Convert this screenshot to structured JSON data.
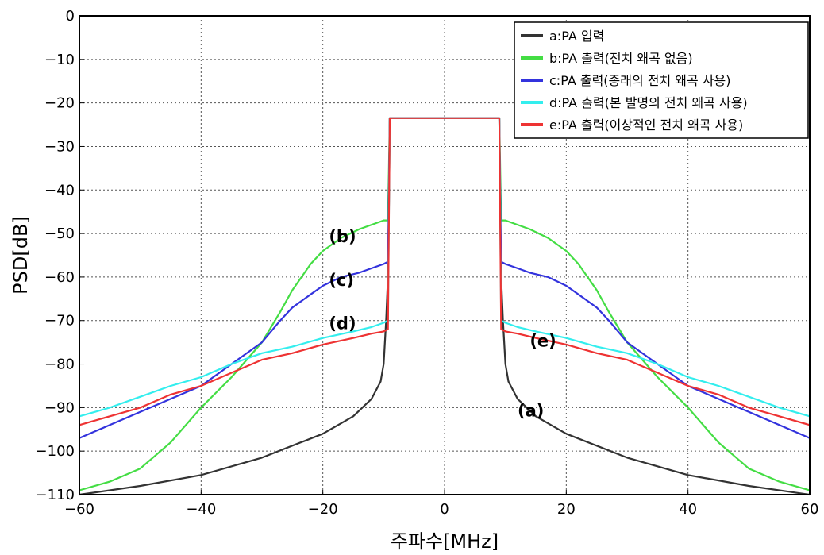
{
  "chart_data": {
    "type": "line",
    "xlabel": "주파수[MHz]",
    "ylabel": "PSD[dB]",
    "xlim": [
      -60,
      60
    ],
    "ylim": [
      -110,
      0
    ],
    "xticks": [
      -60,
      -40,
      -20,
      0,
      20,
      40,
      60
    ],
    "yticks": [
      0,
      -10,
      -20,
      -30,
      -40,
      -50,
      -60,
      -70,
      -80,
      -90,
      -100,
      -110
    ],
    "xtick_labels": [
      "−60",
      "−40",
      "−20",
      "0",
      "20",
      "40",
      "60"
    ],
    "ytick_labels": [
      "0",
      "−10",
      "−20",
      "−30",
      "−40",
      "−50",
      "−60",
      "−70",
      "−80",
      "−90",
      "−100",
      "−110"
    ],
    "grid": true,
    "legend_position": "top-right",
    "series": [
      {
        "name": "a:PA 입력",
        "color": "#333333",
        "points": [
          [
            -60,
            -110
          ],
          [
            -50,
            -108
          ],
          [
            -40,
            -105.5
          ],
          [
            -30,
            -101.5
          ],
          [
            -20,
            -96
          ],
          [
            -15,
            -92
          ],
          [
            -12,
            -88
          ],
          [
            -10.5,
            -84
          ],
          [
            -10,
            -80
          ],
          [
            -9.6,
            -70
          ],
          [
            -9.3,
            -60
          ],
          [
            -9.1,
            -40
          ],
          [
            -9,
            -23.5
          ],
          [
            -5,
            -23.5
          ],
          [
            0,
            -23.5
          ],
          [
            5,
            -23.5
          ],
          [
            9,
            -23.5
          ],
          [
            9.1,
            -40
          ],
          [
            9.3,
            -60
          ],
          [
            9.6,
            -70
          ],
          [
            10,
            -80
          ],
          [
            10.5,
            -84
          ],
          [
            12,
            -88
          ],
          [
            15,
            -92
          ],
          [
            20,
            -96
          ],
          [
            30,
            -101.5
          ],
          [
            40,
            -105.5
          ],
          [
            50,
            -108
          ],
          [
            60,
            -110
          ]
        ]
      },
      {
        "name": "b:PA 출력(전치 왜곡 없음)",
        "color": "#44dd44",
        "points": [
          [
            -60,
            -109
          ],
          [
            -55,
            -107
          ],
          [
            -50,
            -104
          ],
          [
            -45,
            -98
          ],
          [
            -40,
            -90
          ],
          [
            -35,
            -83
          ],
          [
            -30,
            -75
          ],
          [
            -27,
            -68
          ],
          [
            -25,
            -63
          ],
          [
            -22,
            -57
          ],
          [
            -20,
            -54
          ],
          [
            -17,
            -51
          ],
          [
            -14,
            -49
          ],
          [
            -12,
            -48
          ],
          [
            -10,
            -47
          ],
          [
            -9.3,
            -47
          ],
          [
            -9,
            -23.5
          ],
          [
            9,
            -23.5
          ],
          [
            9.3,
            -47
          ],
          [
            10,
            -47
          ],
          [
            12,
            -48
          ],
          [
            14,
            -49
          ],
          [
            17,
            -51
          ],
          [
            20,
            -54
          ],
          [
            22,
            -57
          ],
          [
            25,
            -63
          ],
          [
            27,
            -68
          ],
          [
            30,
            -75
          ],
          [
            35,
            -83
          ],
          [
            40,
            -90
          ],
          [
            45,
            -98
          ],
          [
            50,
            -104
          ],
          [
            55,
            -107
          ],
          [
            60,
            -109
          ]
        ]
      },
      {
        "name": "c:PA 출력(종래의 전치 왜곡 사용)",
        "color": "#3333dd",
        "points": [
          [
            -60,
            -97
          ],
          [
            -55,
            -94
          ],
          [
            -50,
            -91
          ],
          [
            -45,
            -88
          ],
          [
            -40,
            -85
          ],
          [
            -35,
            -80
          ],
          [
            -30,
            -75
          ],
          [
            -27,
            -70
          ],
          [
            -25,
            -67
          ],
          [
            -22,
            -64
          ],
          [
            -20,
            -62
          ],
          [
            -17,
            -60
          ],
          [
            -14,
            -59
          ],
          [
            -12,
            -58
          ],
          [
            -10,
            -57
          ],
          [
            -9.3,
            -56.5
          ],
          [
            -9,
            -23.5
          ],
          [
            9,
            -23.5
          ],
          [
            9.3,
            -56.5
          ],
          [
            10,
            -57
          ],
          [
            12,
            -58
          ],
          [
            14,
            -59
          ],
          [
            17,
            -60
          ],
          [
            20,
            -62
          ],
          [
            22,
            -64
          ],
          [
            25,
            -67
          ],
          [
            27,
            -70
          ],
          [
            30,
            -75
          ],
          [
            35,
            -80
          ],
          [
            40,
            -85
          ],
          [
            45,
            -88
          ],
          [
            50,
            -91
          ],
          [
            55,
            -94
          ],
          [
            60,
            -97
          ]
        ]
      },
      {
        "name": "d:PA 출력(본 발명의 전치 왜곡 사용)",
        "color": "#33eeee",
        "points": [
          [
            -60,
            -92
          ],
          [
            -55,
            -90
          ],
          [
            -50,
            -87.5
          ],
          [
            -45,
            -85
          ],
          [
            -40,
            -83
          ],
          [
            -35,
            -80
          ],
          [
            -30,
            -77.5
          ],
          [
            -25,
            -76
          ],
          [
            -20,
            -74
          ],
          [
            -15,
            -72.5
          ],
          [
            -12,
            -71.5
          ],
          [
            -10,
            -70.5
          ],
          [
            -9.3,
            -70
          ],
          [
            -9,
            -23.5
          ],
          [
            9,
            -23.5
          ],
          [
            9.3,
            -70
          ],
          [
            10,
            -70.5
          ],
          [
            12,
            -71.5
          ],
          [
            15,
            -72.5
          ],
          [
            20,
            -74
          ],
          [
            25,
            -76
          ],
          [
            30,
            -77.5
          ],
          [
            35,
            -80
          ],
          [
            40,
            -83
          ],
          [
            45,
            -85
          ],
          [
            50,
            -87.5
          ],
          [
            55,
            -90
          ],
          [
            60,
            -92
          ]
        ]
      },
      {
        "name": "e:PA 출력(이상적인 전치 왜곡 사용)",
        "color": "#ee3333",
        "points": [
          [
            -60,
            -94
          ],
          [
            -55,
            -92
          ],
          [
            -50,
            -90
          ],
          [
            -45,
            -87
          ],
          [
            -40,
            -85
          ],
          [
            -35,
            -82
          ],
          [
            -30,
            -79
          ],
          [
            -25,
            -77.5
          ],
          [
            -20,
            -75.5
          ],
          [
            -15,
            -74
          ],
          [
            -12,
            -73
          ],
          [
            -10,
            -72.5
          ],
          [
            -9.3,
            -72
          ],
          [
            -9,
            -23.5
          ],
          [
            9,
            -23.5
          ],
          [
            9.3,
            -72
          ],
          [
            10,
            -72.5
          ],
          [
            12,
            -73
          ],
          [
            15,
            -74
          ],
          [
            20,
            -75.5
          ],
          [
            25,
            -77.5
          ],
          [
            30,
            -79
          ],
          [
            35,
            -82
          ],
          [
            40,
            -85
          ],
          [
            45,
            -87
          ],
          [
            50,
            -90
          ],
          [
            55,
            -92
          ],
          [
            60,
            -94
          ]
        ]
      }
    ],
    "annotations": [
      {
        "text": "(b)",
        "x": -19,
        "y": -52
      },
      {
        "text": "(c)",
        "x": -19,
        "y": -62
      },
      {
        "text": "(d)",
        "x": -19,
        "y": -72
      },
      {
        "text": "(e)",
        "x": 14,
        "y": -76
      },
      {
        "text": "(a)",
        "x": 12,
        "y": -92
      }
    ]
  }
}
